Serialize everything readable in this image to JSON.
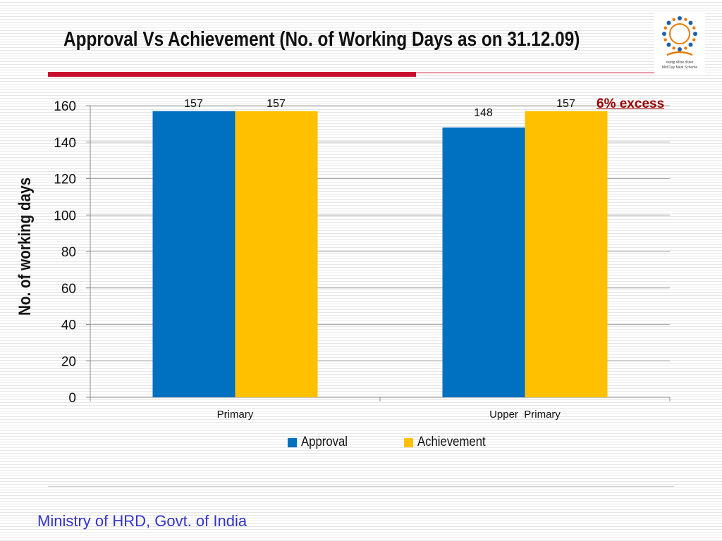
{
  "slide": {
    "title": "Approval Vs Achievement (No. of Working Days as on 31.12.09)",
    "accent_red": "#c8102e",
    "footer": "Ministry of HRD, Govt. of India",
    "footer_color": "#3333cc",
    "logo": {
      "icon": "mid-day-meal-scheme-logo",
      "caption_hindi": "मध्याह्न भोजन योजना",
      "caption_english": "Mid Day Meal Scheme"
    }
  },
  "annotation": {
    "text": "6% excess",
    "color": "#990000"
  },
  "chart_data": {
    "type": "bar",
    "title": "Approval Vs Achievement (No. of Working Days as on 31.12.09)",
    "xlabel": "",
    "ylabel": "No. of working days",
    "categories": [
      "Primary",
      "Upper  Primary"
    ],
    "series": [
      {
        "name": "Approval",
        "values": [
          157,
          148
        ],
        "color": "#0070c0"
      },
      {
        "name": "Achievement",
        "values": [
          157,
          157
        ],
        "color": "#ffc000"
      }
    ],
    "ylim": [
      0,
      160
    ],
    "yticks": [
      0,
      20,
      40,
      60,
      80,
      100,
      120,
      140,
      160
    ],
    "grid": true,
    "legend": "bottom",
    "data_labels": true
  }
}
